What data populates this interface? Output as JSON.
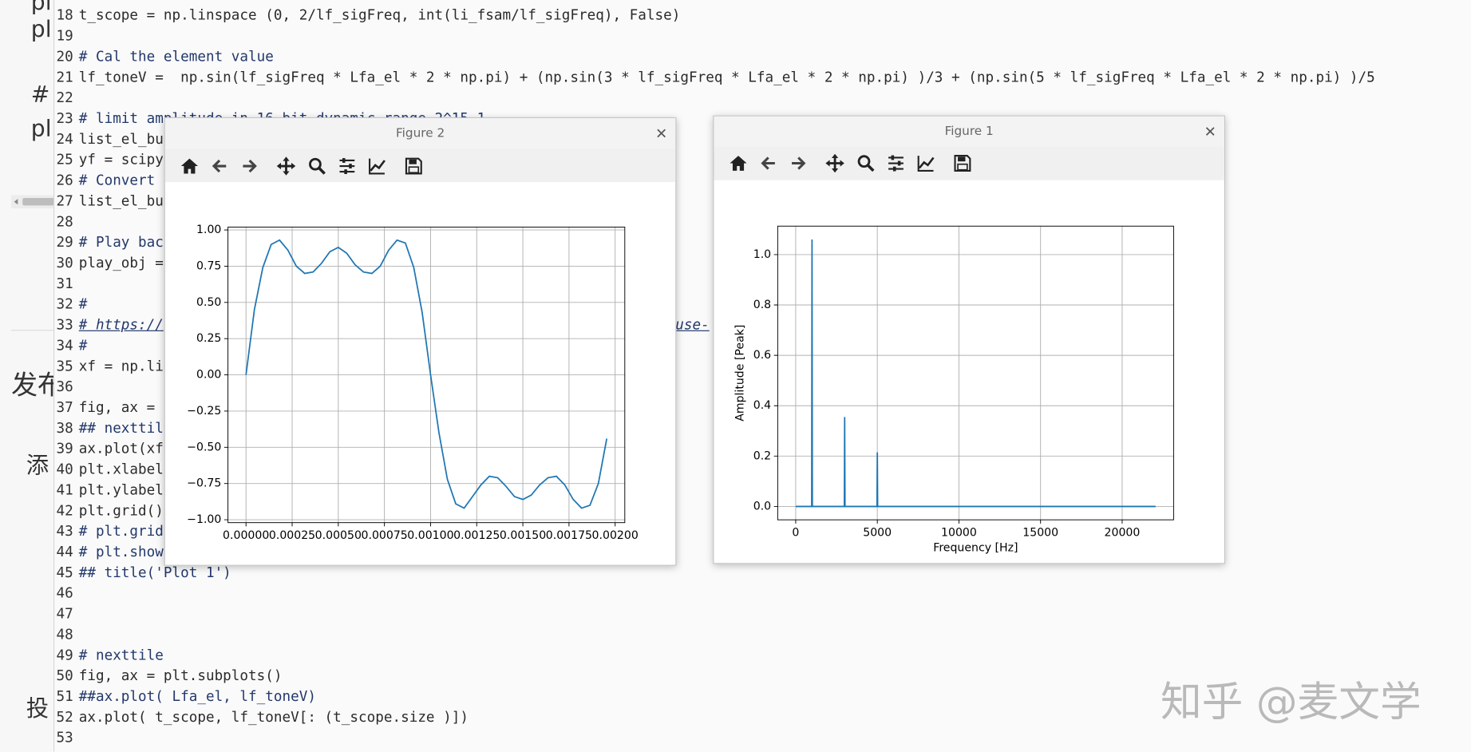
{
  "background_page": {
    "fragments": [
      "pl",
      "pl",
      "#",
      "pl",
      "发布",
      "添",
      "投"
    ]
  },
  "editor": {
    "lines": [
      {
        "number": 18,
        "code": "t_scope = np.linspace (0, 2/lf_sigFreq, int(li_fsam/lf_sigFreq), False)"
      },
      {
        "number": 19
      },
      {
        "number": 20,
        "code": "# Cal the element value"
      },
      {
        "number": 21,
        "code": "lf_toneV =  np.sin(lf_sigFreq * Lfa_el * 2 * np.pi) + (np.sin(3 * lf_sigFreq * Lfa_el * 2 * np.pi) )/3 + (np.sin(5 * lf_sigFreq * Lfa_el * 2 * np.pi) )/5"
      },
      {
        "number": 22
      },
      {
        "number": 23,
        "code": "# limit amplitude in 16 bit dynamic range 2^15-1"
      },
      {
        "number": 24,
        "code": "list_el_bu"
      },
      {
        "number": 25,
        "code": "yf = scipy"
      },
      {
        "number": 26,
        "code": "# Convert"
      },
      {
        "number": 27,
        "code": "list_el_bu"
      },
      {
        "number": 28
      },
      {
        "number": 29,
        "code": "# Play bac"
      },
      {
        "number": 30,
        "code": "play_obj ="
      },
      {
        "number": 31
      },
      {
        "number": 32,
        "code": "#"
      },
      {
        "number": 33,
        "code": "# https://",
        "code_tail": "use-"
      },
      {
        "number": 34,
        "code": "#"
      },
      {
        "number": 35,
        "code": "xf = np.li"
      },
      {
        "number": 36
      },
      {
        "number": 37,
        "code": "fig, ax ="
      },
      {
        "number": 38,
        "code": "## nexttil"
      },
      {
        "number": 39,
        "code": "ax.plot(xf"
      },
      {
        "number": 40,
        "code": "plt.xlabel"
      },
      {
        "number": 41,
        "code": "plt.ylabel"
      },
      {
        "number": 42,
        "code": "plt.grid()"
      },
      {
        "number": 43,
        "code": "# plt.grid"
      },
      {
        "number": 44,
        "code": "# plt.show"
      },
      {
        "number": 45,
        "code": "## title('Plot 1')"
      },
      {
        "number": 46
      },
      {
        "number": 47
      },
      {
        "number": 48
      },
      {
        "number": 49,
        "code": "# nexttile"
      },
      {
        "number": 50,
        "code": "fig, ax = plt.subplots()"
      },
      {
        "number": 51,
        "code": "##ax.plot( Lfa_el, lf_toneV)"
      },
      {
        "number": 52,
        "code": "ax.plot( t_scope, lf_toneV[: (t_scope.size )])"
      },
      {
        "number": 53
      }
    ]
  },
  "windows": [
    {
      "title": "Figure 2"
    },
    {
      "title": "Figure 1"
    }
  ],
  "chart_data": [
    {
      "type": "line",
      "color": "#1f77b4",
      "grid": true,
      "x": [
        0,
        4.55e-05,
        9.09e-05,
        0.0001364,
        0.0001818,
        0.0002273,
        0.0002727,
        0.0003182,
        0.0003636,
        0.0004091,
        0.0004545,
        0.0005,
        0.0005455,
        0.0005909,
        0.0006364,
        0.0006818,
        0.0007273,
        0.0007727,
        0.0008182,
        0.0008636,
        0.0009091,
        0.0009545,
        0.001,
        0.0010455,
        0.0010909,
        0.0011364,
        0.0011818,
        0.0012273,
        0.0012727,
        0.0013182,
        0.0013636,
        0.0014091,
        0.0014545,
        0.0015,
        0.0015455,
        0.0015909,
        0.0016364,
        0.0016818,
        0.0017273,
        0.0017727,
        0.0018182,
        0.0018636,
        0.0019091,
        0.0019545
      ],
      "values": [
        0,
        0.45,
        0.74,
        0.9,
        0.93,
        0.86,
        0.75,
        0.7,
        0.71,
        0.77,
        0.85,
        0.88,
        0.84,
        0.76,
        0.71,
        0.7,
        0.75,
        0.86,
        0.93,
        0.91,
        0.74,
        0.43,
        0,
        -0.4,
        -0.72,
        -0.89,
        -0.92,
        -0.84,
        -0.76,
        -0.7,
        -0.71,
        -0.77,
        -0.84,
        -0.86,
        -0.83,
        -0.76,
        -0.71,
        -0.7,
        -0.76,
        -0.86,
        -0.92,
        -0.9,
        -0.75,
        -0.44
      ],
      "xlim": [
        -9.77e-05,
        0.0020523
      ],
      "xticks": [
        {
          "value": 0,
          "label": "0.00000"
        },
        {
          "value": 0.00025,
          "label": "0.00025"
        },
        {
          "value": 0.0005,
          "label": "0.00050"
        },
        {
          "value": 0.00075,
          "label": "0.00075"
        },
        {
          "value": 0.001,
          "label": "0.00100"
        },
        {
          "value": 0.00125,
          "label": "0.00125"
        },
        {
          "value": 0.0015,
          "label": "0.00150"
        },
        {
          "value": 0.00175,
          "label": "0.00175"
        },
        {
          "value": 0.002,
          "label": "0.00200"
        }
      ],
      "ylim": [
        -1.02,
        1.02
      ],
      "yticks": [
        {
          "value": -1,
          "label": "−1.00"
        },
        {
          "value": -0.75,
          "label": "−0.75"
        },
        {
          "value": -0.5,
          "label": "−0.50"
        },
        {
          "value": -0.25,
          "label": "−0.25"
        },
        {
          "value": 0,
          "label": "0.00"
        },
        {
          "value": 0.25,
          "label": "0.25"
        },
        {
          "value": 0.5,
          "label": "0.50"
        },
        {
          "value": 0.75,
          "label": "0.75"
        },
        {
          "value": 1,
          "label": "1.00"
        }
      ]
    },
    {
      "type": "line",
      "color": "#1f77b4",
      "grid": true,
      "x_label": "Frequency [Hz]",
      "y_label": "Amplitude [Peak]",
      "x": [
        0,
        980,
        1000,
        1020,
        2980,
        3000,
        3020,
        4980,
        5000,
        5020,
        22050
      ],
      "values": [
        0,
        0,
        1.06,
        0,
        0,
        0.355,
        0,
        0,
        0.215,
        0,
        0
      ],
      "xlim": [
        -1102,
        23152
      ],
      "xticks": [
        0,
        5000,
        10000,
        15000,
        20000
      ],
      "ylim": [
        -0.053,
        1.113
      ],
      "yticks": [
        {
          "value": 0,
          "label": "0.0"
        },
        0.2,
        0.4,
        0.6,
        0.8,
        {
          "value": 1,
          "label": "1.0"
        }
      ]
    }
  ],
  "watermark": "知乎 @麦文学"
}
